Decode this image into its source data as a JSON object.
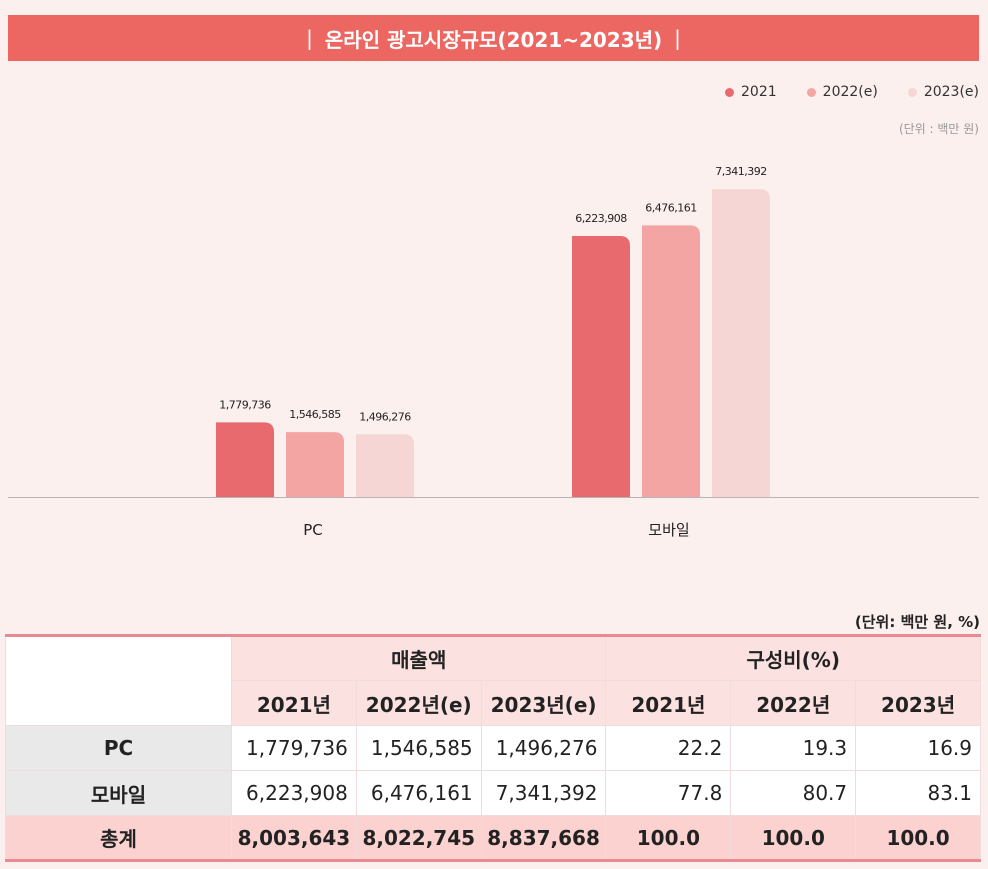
{
  "title": {
    "text": "온라인 광고시장규모(2021~2023년)",
    "sep": "|"
  },
  "legend": [
    {
      "label": "2021",
      "color": "#e96a6e"
    },
    {
      "label": "2022(e)",
      "color": "#f2a5a2"
    },
    {
      "label": "2023(e)",
      "color": "#f5d6d5"
    }
  ],
  "chart_unit": "(단위 : 백만 원)",
  "chart_data": {
    "type": "bar",
    "categories": [
      "PC",
      "모바일"
    ],
    "series": [
      {
        "name": "2021",
        "values": [
          1779736,
          6223908
        ],
        "labels": [
          "1,779,736",
          "6,223,908"
        ],
        "color": "#e96a6e"
      },
      {
        "name": "2022(e)",
        "values": [
          1546585,
          6476161
        ],
        "labels": [
          "1,546,585",
          "6,476,161"
        ],
        "color": "#f2a5a2"
      },
      {
        "name": "2023(e)",
        "values": [
          1496276,
          7341392
        ],
        "labels": [
          "1,496,276",
          "7,341,392"
        ],
        "color": "#f5d6d5"
      }
    ],
    "ylim": [
      0,
      8500000
    ],
    "grid": false,
    "legend_position": "top-right"
  },
  "table": {
    "unit": "(단위: 백만 원, %)",
    "group_headers": [
      "매출액",
      "구성비(%)"
    ],
    "sub_headers": [
      "2021년",
      "2022년(e)",
      "2023년(e)",
      "2021년",
      "2022년",
      "2023년"
    ],
    "rows": [
      {
        "label": "PC",
        "cells": [
          "1,779,736",
          "1,546,585",
          "1,496,276",
          "22.2",
          "19.3",
          "16.9"
        ]
      },
      {
        "label": "모바일",
        "cells": [
          "6,223,908",
          "6,476,161",
          "7,341,392",
          "77.8",
          "80.7",
          "83.1"
        ]
      }
    ],
    "total": {
      "label": "총계",
      "cells": [
        "8,003,643",
        "8,022,745",
        "8,837,668",
        "100.0",
        "100.0",
        "100.0"
      ]
    }
  }
}
